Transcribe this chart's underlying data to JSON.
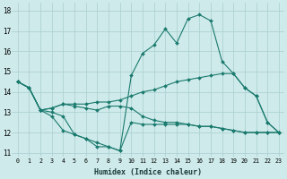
{
  "xlabel": "Humidex (Indice chaleur)",
  "bg_color": "#ceeaea",
  "grid_color": "#aacece",
  "line_color": "#1a7a6e",
  "xlim": [
    -0.5,
    23.5
  ],
  "ylim": [
    10.8,
    18.4
  ],
  "yticks": [
    11,
    12,
    13,
    14,
    15,
    16,
    17,
    18
  ],
  "xticks": [
    0,
    1,
    2,
    3,
    4,
    5,
    6,
    7,
    8,
    9,
    10,
    11,
    12,
    13,
    14,
    15,
    16,
    17,
    18,
    19,
    20,
    21,
    22,
    23
  ],
  "series": [
    {
      "x": [
        0,
        1,
        2,
        3,
        4,
        5,
        6,
        7,
        8,
        9,
        10,
        11,
        12,
        13,
        14,
        15,
        16,
        17,
        18,
        19,
        20,
        21,
        22,
        23
      ],
      "y": [
        14.5,
        14.2,
        13.1,
        13.0,
        12.8,
        11.9,
        11.7,
        11.3,
        11.3,
        11.1,
        14.8,
        15.9,
        16.3,
        17.1,
        16.4,
        17.6,
        17.8,
        17.5,
        15.5,
        14.9,
        14.2,
        13.8,
        12.5,
        12.0
      ]
    },
    {
      "x": [
        0,
        1,
        2,
        3,
        4,
        5,
        6,
        7,
        8,
        9,
        10,
        11,
        12,
        13,
        14,
        15,
        16,
        17,
        18,
        19,
        20,
        21,
        22,
        23
      ],
      "y": [
        14.5,
        14.2,
        13.1,
        13.2,
        13.4,
        13.4,
        13.4,
        13.5,
        13.5,
        13.6,
        13.8,
        14.0,
        14.1,
        14.3,
        14.5,
        14.6,
        14.7,
        14.8,
        14.9,
        14.9,
        14.2,
        13.8,
        12.5,
        12.0
      ]
    },
    {
      "x": [
        0,
        1,
        2,
        3,
        4,
        5,
        6,
        7,
        8,
        9,
        10,
        11,
        12,
        13,
        14,
        15,
        16,
        17,
        18,
        19,
        20,
        21,
        22,
        23
      ],
      "y": [
        14.5,
        14.2,
        13.1,
        12.8,
        12.1,
        11.9,
        11.7,
        11.5,
        11.3,
        11.1,
        12.5,
        12.4,
        12.4,
        12.4,
        12.4,
        12.4,
        12.3,
        12.3,
        12.2,
        12.1,
        12.0,
        12.0,
        12.0,
        12.0
      ]
    },
    {
      "x": [
        0,
        1,
        2,
        3,
        4,
        5,
        6,
        7,
        8,
        9,
        10,
        11,
        12,
        13,
        14,
        15,
        16,
        17,
        18,
        19,
        20,
        21,
        22,
        23
      ],
      "y": [
        14.5,
        14.2,
        13.1,
        13.2,
        13.4,
        13.3,
        13.2,
        13.1,
        13.3,
        13.3,
        13.2,
        12.8,
        12.6,
        12.5,
        12.5,
        12.4,
        12.3,
        12.3,
        12.2,
        12.1,
        12.0,
        12.0,
        12.0,
        12.0
      ]
    }
  ]
}
